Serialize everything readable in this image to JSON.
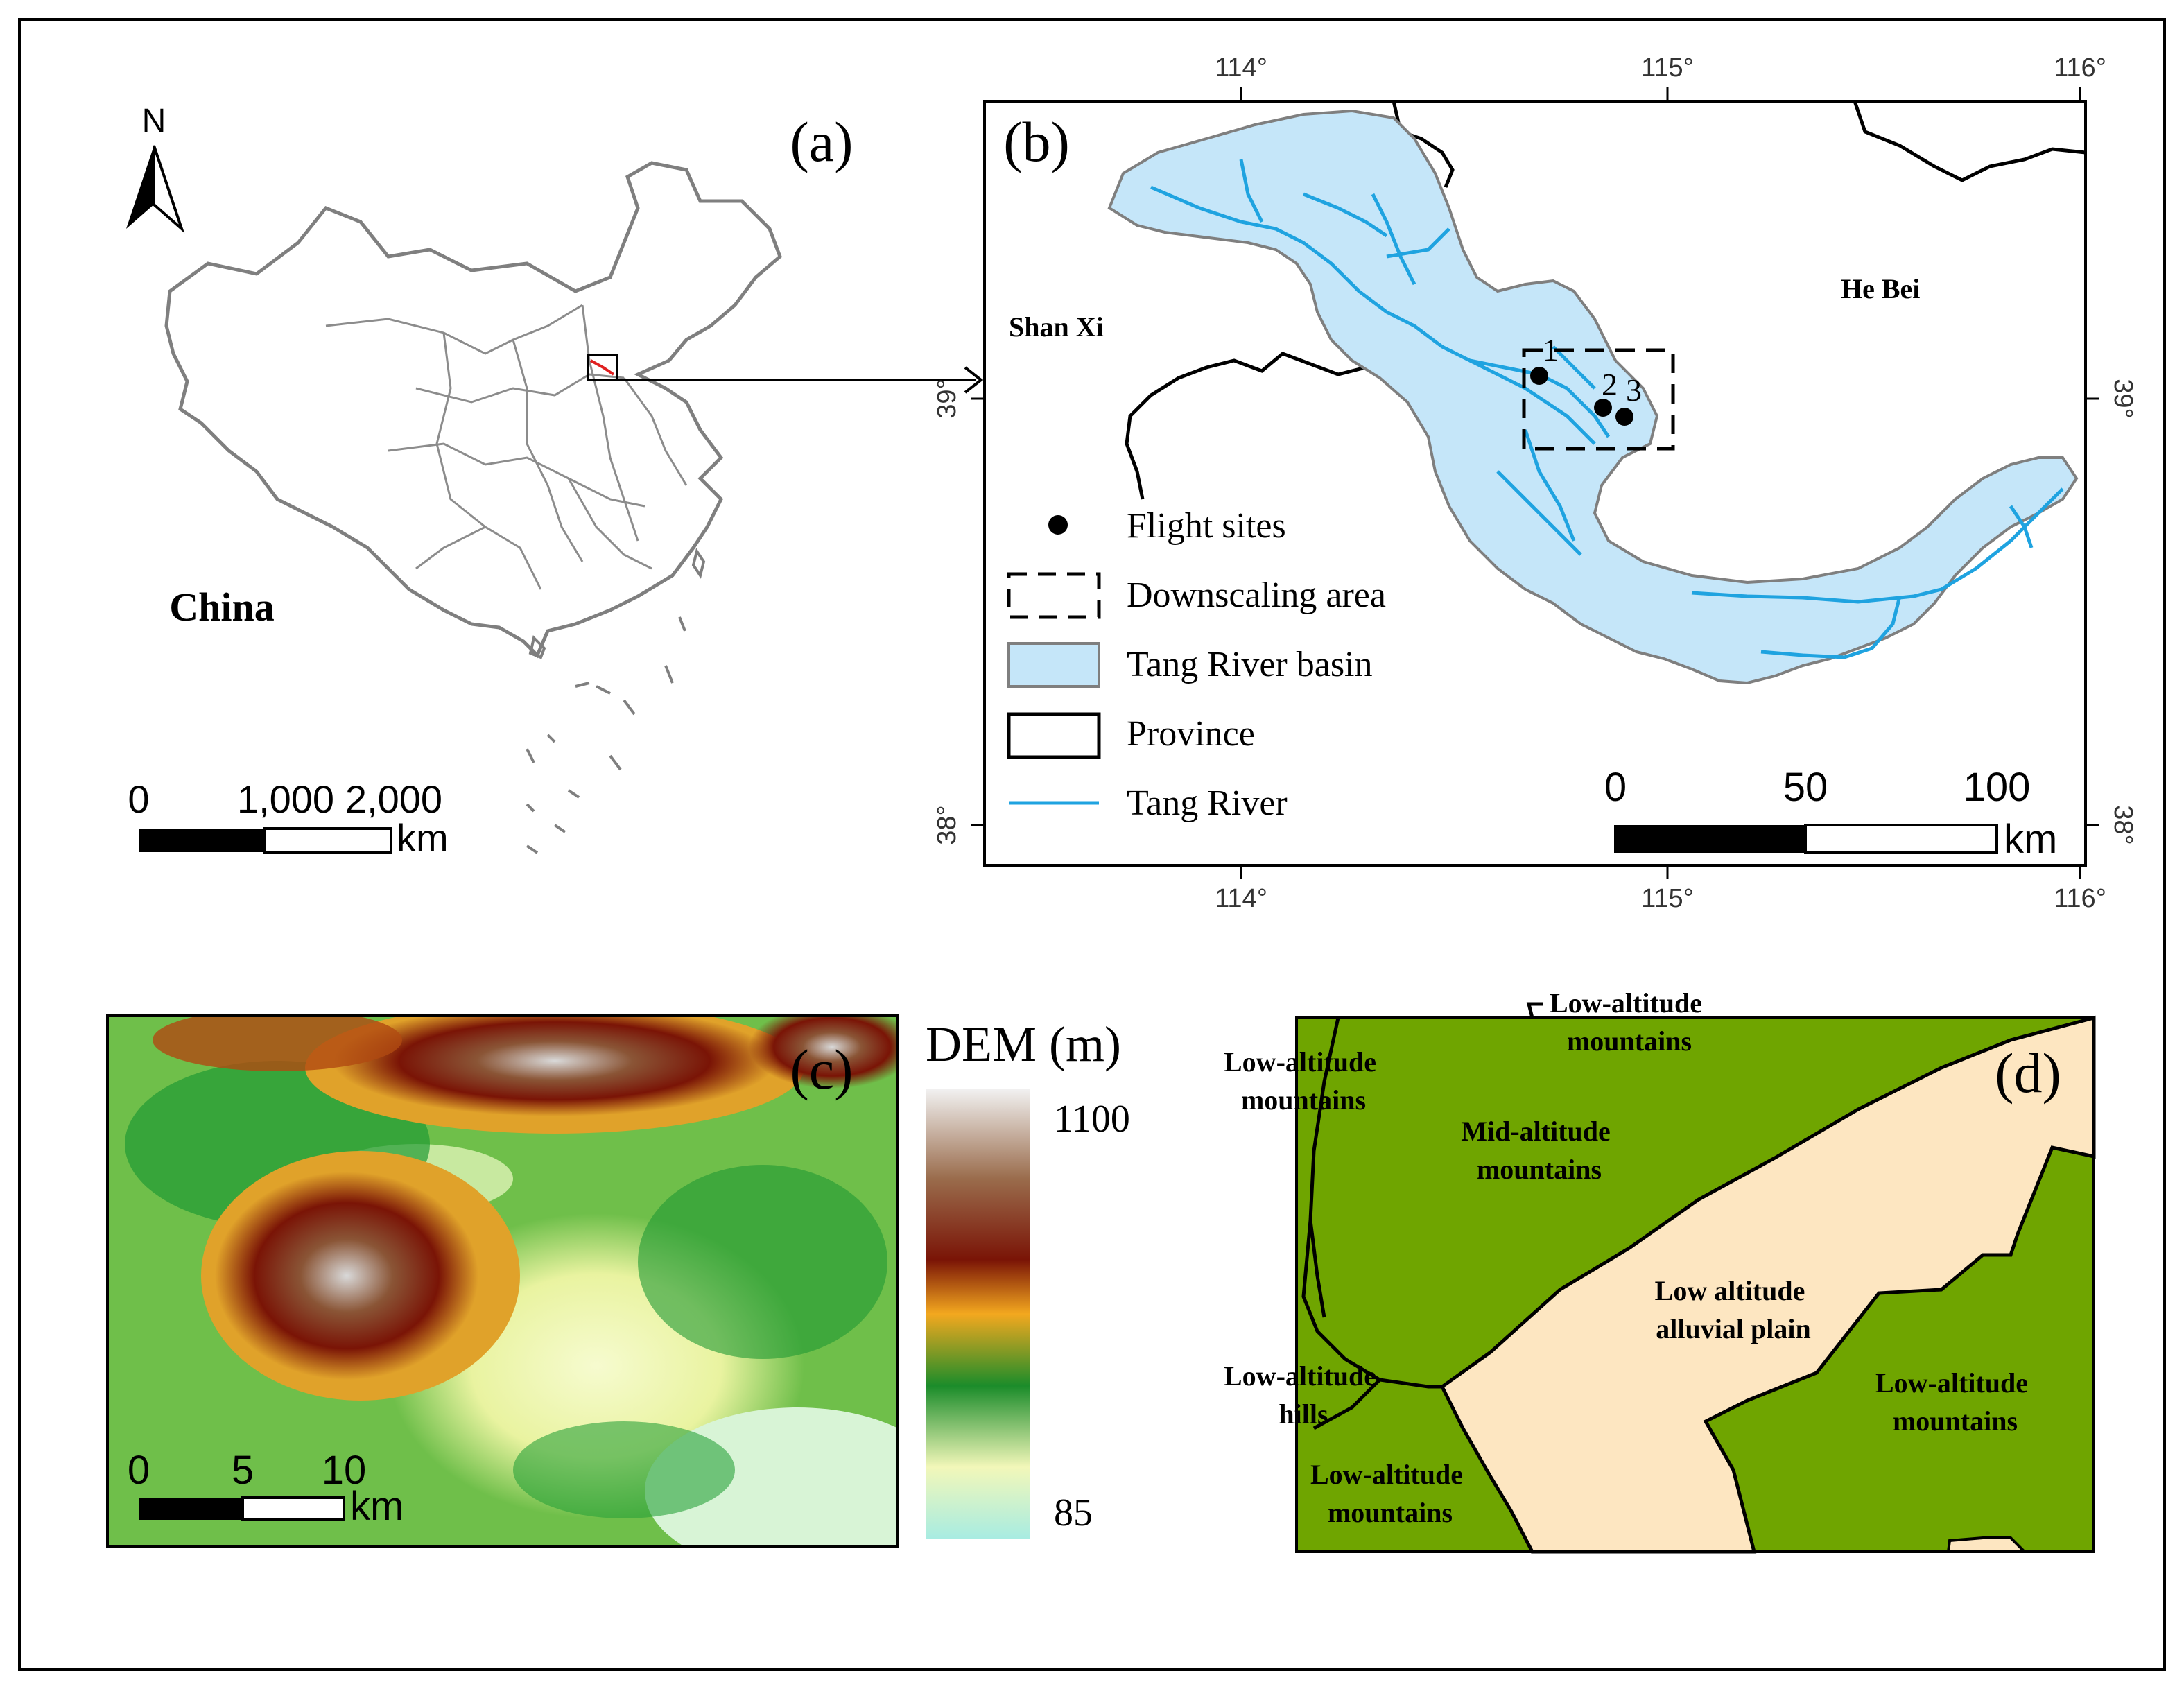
{
  "panels": {
    "a": {
      "label": "(a)",
      "north": "N",
      "country": "China",
      "scalebar": {
        "ticks": [
          "0",
          "1,000",
          "2,000"
        ],
        "unit": "km"
      }
    },
    "b": {
      "label": "(b)",
      "top_ticks": [
        "114°",
        "115°",
        "116°"
      ],
      "bottom_ticks": [
        "114°",
        "115°",
        "116°"
      ],
      "left_ticks": [
        "39°",
        "38°"
      ],
      "right_ticks": [
        "39°",
        "38°"
      ],
      "province_labels": {
        "west": "Shan Xi",
        "east": "He Bei"
      },
      "site_numbers": [
        "1",
        "2",
        "3"
      ],
      "legend": [
        {
          "symbol": "dot",
          "label": "Flight sites"
        },
        {
          "symbol": "dashed-box",
          "label": "Downscaling area"
        },
        {
          "symbol": "basin-fill",
          "label": "Tang River basin"
        },
        {
          "symbol": "outline-box",
          "label": "Province"
        },
        {
          "symbol": "river-line",
          "label": "Tang River"
        }
      ],
      "scalebar": {
        "ticks": [
          "0",
          "50",
          "100"
        ],
        "unit": "km"
      }
    },
    "c": {
      "label": "(c)",
      "legend_title": "DEM (m)",
      "legend_max": "1100",
      "legend_min": "85",
      "scalebar": {
        "ticks": [
          "0",
          "5",
          "10"
        ],
        "unit": "km"
      }
    },
    "d": {
      "label": "(d)",
      "zones": [
        {
          "lines": [
            "Low-altitude",
            "mountains"
          ]
        },
        {
          "lines": [
            "Low-altitude",
            "mountains"
          ]
        },
        {
          "lines": [
            "Mid-altitude",
            "mountains"
          ]
        },
        {
          "lines": [
            "Low altitude",
            "alluvial plain"
          ]
        },
        {
          "lines": [
            "Low-altitude",
            "hills"
          ]
        },
        {
          "lines": [
            "Low-altitude",
            "mountains"
          ]
        },
        {
          "lines": [
            "Low-altitude",
            "mountains"
          ]
        }
      ]
    }
  },
  "colors": {
    "basin_fill": "#c5e6f9",
    "basin_edge": "#7f7f7f",
    "river": "#1fa3e0",
    "mountain_green": "#6fa500",
    "plain": "#fde6c1",
    "dem_ramp": [
      "#a7ece2",
      "#f2f7b9",
      "#1b8c2a",
      "#f3a81f",
      "#7a1406",
      "#9a6c4c",
      "#f2f2f2"
    ]
  }
}
